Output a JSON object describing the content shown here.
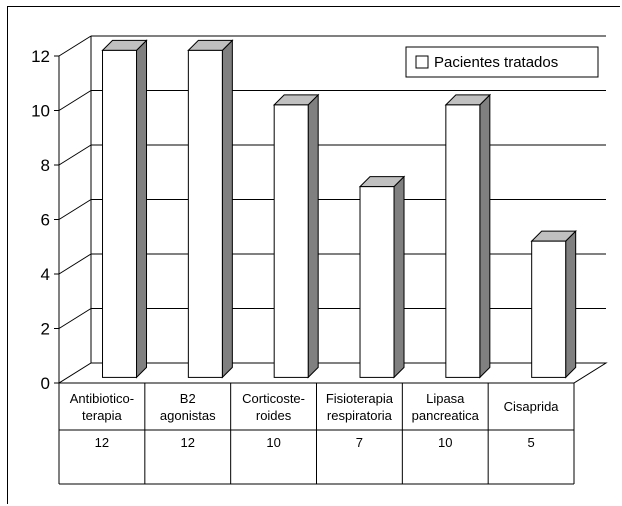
{
  "chart_data": {
    "type": "bar",
    "title": "",
    "xlabel": "",
    "ylabel": "",
    "ylim": [
      0,
      12
    ],
    "y_ticks": [
      "0",
      "2",
      "4",
      "6",
      "8",
      "10",
      "12"
    ],
    "categories": [
      [
        "Antibiotico-",
        "terapia"
      ],
      [
        "B2",
        "agonistas"
      ],
      [
        "Corticoste-",
        "roides"
      ],
      [
        "Fisioterapia",
        "respiratoria"
      ],
      [
        "Lipasa",
        "pancreatica"
      ],
      [
        "Cisaprida"
      ]
    ],
    "series": [
      {
        "name": "Pacientes tratados",
        "values": [
          12,
          12,
          10,
          7,
          10,
          5
        ]
      }
    ],
    "data_table": true,
    "grid": true,
    "legend": "top-right",
    "three_d": true
  },
  "colors": {
    "bar_front": "#ffffff",
    "bar_side": "#808080",
    "bar_top": "#c0c0c0",
    "grid": "#000000",
    "axis": "#000000"
  }
}
